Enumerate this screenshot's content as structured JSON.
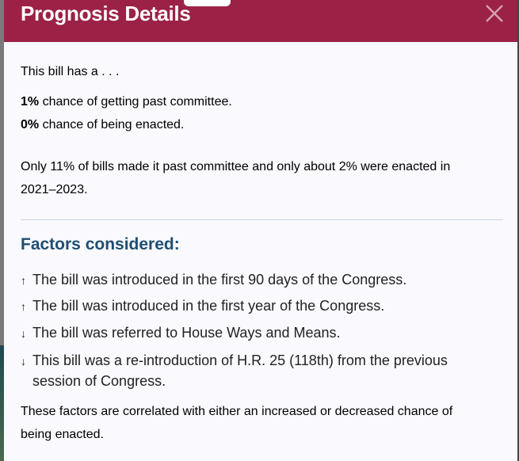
{
  "modal": {
    "title": "Prognosis Details",
    "intro": "This bill has a . . .",
    "committee": {
      "value": "1%",
      "text": " chance of getting past committee."
    },
    "enacted": {
      "value": "0%",
      "text": " chance of being enacted."
    },
    "context": "Only 11% of bills made it past committee and only about 2% were enacted in 2021–2023.",
    "factors_heading": "Factors considered:",
    "factors": [
      {
        "arrow": "↑",
        "text": "The bill was introduced in the first 90 days of the Congress."
      },
      {
        "arrow": "↑",
        "text": "The bill was introduced in the first year of the Congress."
      },
      {
        "arrow": "↓",
        "text": "The bill was referred to House Ways and Means."
      },
      {
        "arrow": "↓",
        "text": "This bill was a re-introduction of H.R. 25 (118th) from the previous session of Congress."
      }
    ],
    "footer": "These factors are correlated with either an increased or decreased chance of being enacted.",
    "colors": {
      "header": "#9c2146",
      "heading": "#1e4e72"
    }
  }
}
